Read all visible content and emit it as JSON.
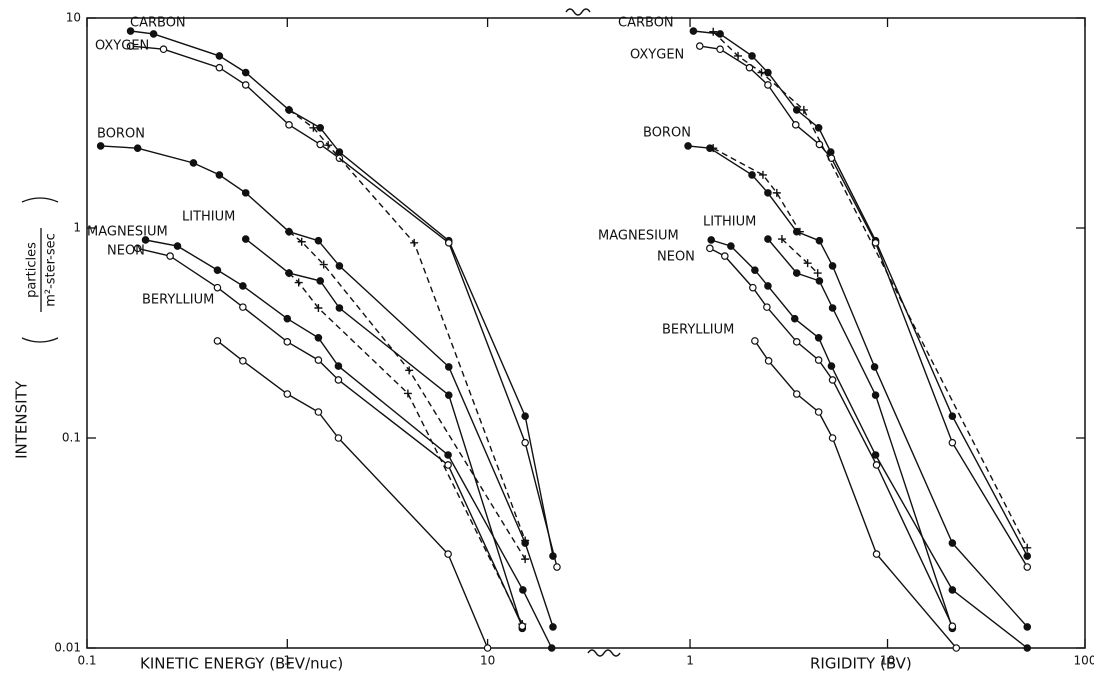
{
  "chart_data": [
    {
      "type": "line",
      "xscale": "log",
      "yscale": "log",
      "xlabel": "KINETIC ENERGY (BEV/nuc)",
      "ylabel": "INTENSITY",
      "yunit_numerator": "particles",
      "yunit_denominator": "m²-ster-sec",
      "xlim": [
        0.1,
        27
      ],
      "ylim": [
        0.01,
        10
      ],
      "xticks": [
        0.1,
        1,
        10
      ],
      "yticks": [
        0.01,
        0.1,
        1,
        10
      ],
      "series": [
        {
          "name": "CARBON",
          "marker": "filled",
          "color": "#111111",
          "x": [
            0.165,
            0.215,
            0.458,
            0.62,
            1.02,
            1.46,
            1.82,
            6.4,
            15.4,
            21.2
          ],
          "values": [
            8.67,
            8.4,
            6.6,
            5.5,
            3.65,
            3.0,
            2.3,
            0.87,
            0.127,
            0.0274
          ]
        },
        {
          "name": "OXYGEN",
          "marker": "open",
          "color": "#111111",
          "x": [
            0.165,
            0.241,
            0.458,
            0.62,
            1.02,
            1.46,
            1.82,
            6.4,
            15.4,
            22.2
          ],
          "values": [
            7.35,
            7.1,
            5.8,
            4.8,
            3.1,
            2.5,
            2.15,
            0.85,
            0.095,
            0.0243
          ]
        },
        {
          "marker": "plus",
          "dashed": true,
          "color": "#111111",
          "x": [
            1.02,
            1.35,
            1.6,
            4.3,
            15.4
          ],
          "values": [
            3.65,
            3.0,
            2.48,
            0.85,
            0.0325
          ]
        },
        {
          "name": "BORON",
          "marker": "filled",
          "color": "#111111",
          "x": [
            0.117,
            0.179,
            0.34,
            0.458,
            0.62,
            1.02,
            1.43,
            1.82,
            6.4,
            15.4,
            21.2
          ],
          "values": [
            2.46,
            2.4,
            2.04,
            1.79,
            1.47,
            0.96,
            0.87,
            0.66,
            0.218,
            0.0316,
            0.0126
          ]
        },
        {
          "marker": "plus",
          "dashed": true,
          "color": "#111111",
          "x": [
            1.02,
            1.18,
            1.52,
            4.06,
            15.4
          ],
          "values": [
            0.96,
            0.86,
            0.67,
            0.21,
            0.0265
          ]
        },
        {
          "name": "LITHIUM",
          "marker": "filled",
          "color": "#111111",
          "x": [
            0.62,
            1.02,
            1.46,
            1.82,
            6.4,
            14.9
          ],
          "values": [
            0.886,
            0.61,
            0.56,
            0.416,
            0.16,
            0.0124
          ]
        },
        {
          "marker": "plus",
          "dashed": true,
          "color": "#111111",
          "x": [
            1.02,
            1.14,
            1.43,
            4.0,
            14.9
          ],
          "values": [
            0.61,
            0.55,
            0.416,
            0.163,
            0.013
          ]
        },
        {
          "name": "MAGNESIUM",
          "marker": "filled",
          "color": "#111111",
          "x": [
            0.196,
            0.283,
            0.448,
            0.6,
            1.0,
            1.43,
            1.8,
            6.35,
            15.0,
            20.9
          ],
          "values": [
            0.877,
            0.82,
            0.63,
            0.53,
            0.37,
            0.3,
            0.22,
            0.083,
            0.0189,
            0.01
          ]
        },
        {
          "name": "NEON",
          "marker": "open",
          "color": "#111111",
          "x": [
            0.179,
            0.26,
            0.448,
            0.6,
            1.0,
            1.43,
            1.8,
            6.35,
            14.9
          ],
          "values": [
            0.8,
            0.735,
            0.52,
            0.42,
            0.287,
            0.235,
            0.189,
            0.0744,
            0.0127
          ]
        },
        {
          "name": "BERYLLIUM",
          "marker": "open",
          "color": "#111111",
          "x": [
            0.448,
            0.6,
            1.0,
            1.43,
            1.8,
            6.35,
            10.0
          ],
          "values": [
            0.29,
            0.233,
            0.162,
            0.133,
            0.1,
            0.028,
            0.01
          ]
        }
      ]
    },
    {
      "type": "line",
      "xscale": "log",
      "yscale": "log",
      "xlabel": "RIGIDITY (BV)",
      "xlim": [
        0.35,
        100
      ],
      "ylim": [
        0.01,
        10
      ],
      "xticks": [
        1,
        10,
        100
      ],
      "series": [
        {
          "name": "CARBON",
          "marker": "filled",
          "color": "#111111",
          "x": [
            1.04,
            1.42,
            2.06,
            2.48,
            3.47,
            4.48,
            5.16,
            8.7,
            21.3,
            51
          ],
          "values": [
            8.67,
            8.4,
            6.6,
            5.5,
            3.65,
            3.0,
            2.3,
            0.87,
            0.127,
            0.0274
          ]
        },
        {
          "name": "OXYGEN",
          "marker": "open",
          "color": "#111111",
          "x": [
            1.12,
            1.42,
            2.0,
            2.48,
            3.43,
            4.52,
            5.2,
            8.7,
            21.3,
            51
          ],
          "values": [
            7.35,
            7.1,
            5.8,
            4.8,
            3.1,
            2.5,
            2.15,
            0.85,
            0.095,
            0.0243
          ]
        },
        {
          "marker": "plus",
          "dashed": true,
          "color": "#111111",
          "x": [
            1.31,
            1.75,
            2.3,
            3.77,
            51
          ],
          "values": [
            8.6,
            6.6,
            5.5,
            3.65,
            0.03
          ]
        },
        {
          "name": "BORON",
          "marker": "filled",
          "color": "#111111",
          "x": [
            0.977,
            1.26,
            2.06,
            2.48,
            3.47,
            4.52,
            5.27,
            8.6,
            21.3,
            51
          ],
          "values": [
            2.46,
            2.4,
            1.79,
            1.47,
            0.96,
            0.87,
            0.66,
            0.218,
            0.0316,
            0.0126
          ]
        },
        {
          "marker": "plus",
          "dashed": true,
          "color": "#111111",
          "x": [
            1.31,
            2.34,
            2.75,
            3.6
          ],
          "values": [
            2.4,
            1.79,
            1.47,
            0.96
          ]
        },
        {
          "name": "LITHIUM",
          "marker": "filled",
          "color": "#111111",
          "x": [
            2.48,
            3.47,
            4.52,
            5.27,
            8.7,
            21.3
          ],
          "values": [
            0.886,
            0.61,
            0.56,
            0.416,
            0.16,
            0.0124
          ]
        },
        {
          "marker": "plus",
          "dashed": true,
          "color": "#111111",
          "x": [
            2.92,
            3.94,
            4.43
          ],
          "values": [
            0.886,
            0.68,
            0.61
          ]
        },
        {
          "name": "MAGNESIUM",
          "marker": "filled",
          "color": "#111111",
          "x": [
            1.28,
            1.61,
            2.13,
            2.48,
            3.39,
            4.48,
            5.2,
            8.7,
            21.3,
            51
          ],
          "values": [
            0.877,
            0.82,
            0.63,
            0.53,
            0.37,
            0.3,
            0.22,
            0.083,
            0.0189,
            0.01
          ]
        },
        {
          "name": "NEON",
          "marker": "open",
          "color": "#111111",
          "x": [
            1.26,
            1.5,
            2.08,
            2.45,
            3.47,
            4.48,
            5.27,
            8.8,
            21.3
          ],
          "values": [
            0.8,
            0.735,
            0.52,
            0.42,
            0.287,
            0.235,
            0.189,
            0.0744,
            0.0127
          ]
        },
        {
          "name": "BERYLLIUM",
          "marker": "open",
          "color": "#111111",
          "x": [
            2.13,
            2.5,
            3.47,
            4.48,
            5.27,
            8.8,
            22.3
          ],
          "values": [
            0.29,
            0.233,
            0.162,
            0.133,
            0.1,
            0.028,
            0.01
          ]
        }
      ]
    }
  ]
}
